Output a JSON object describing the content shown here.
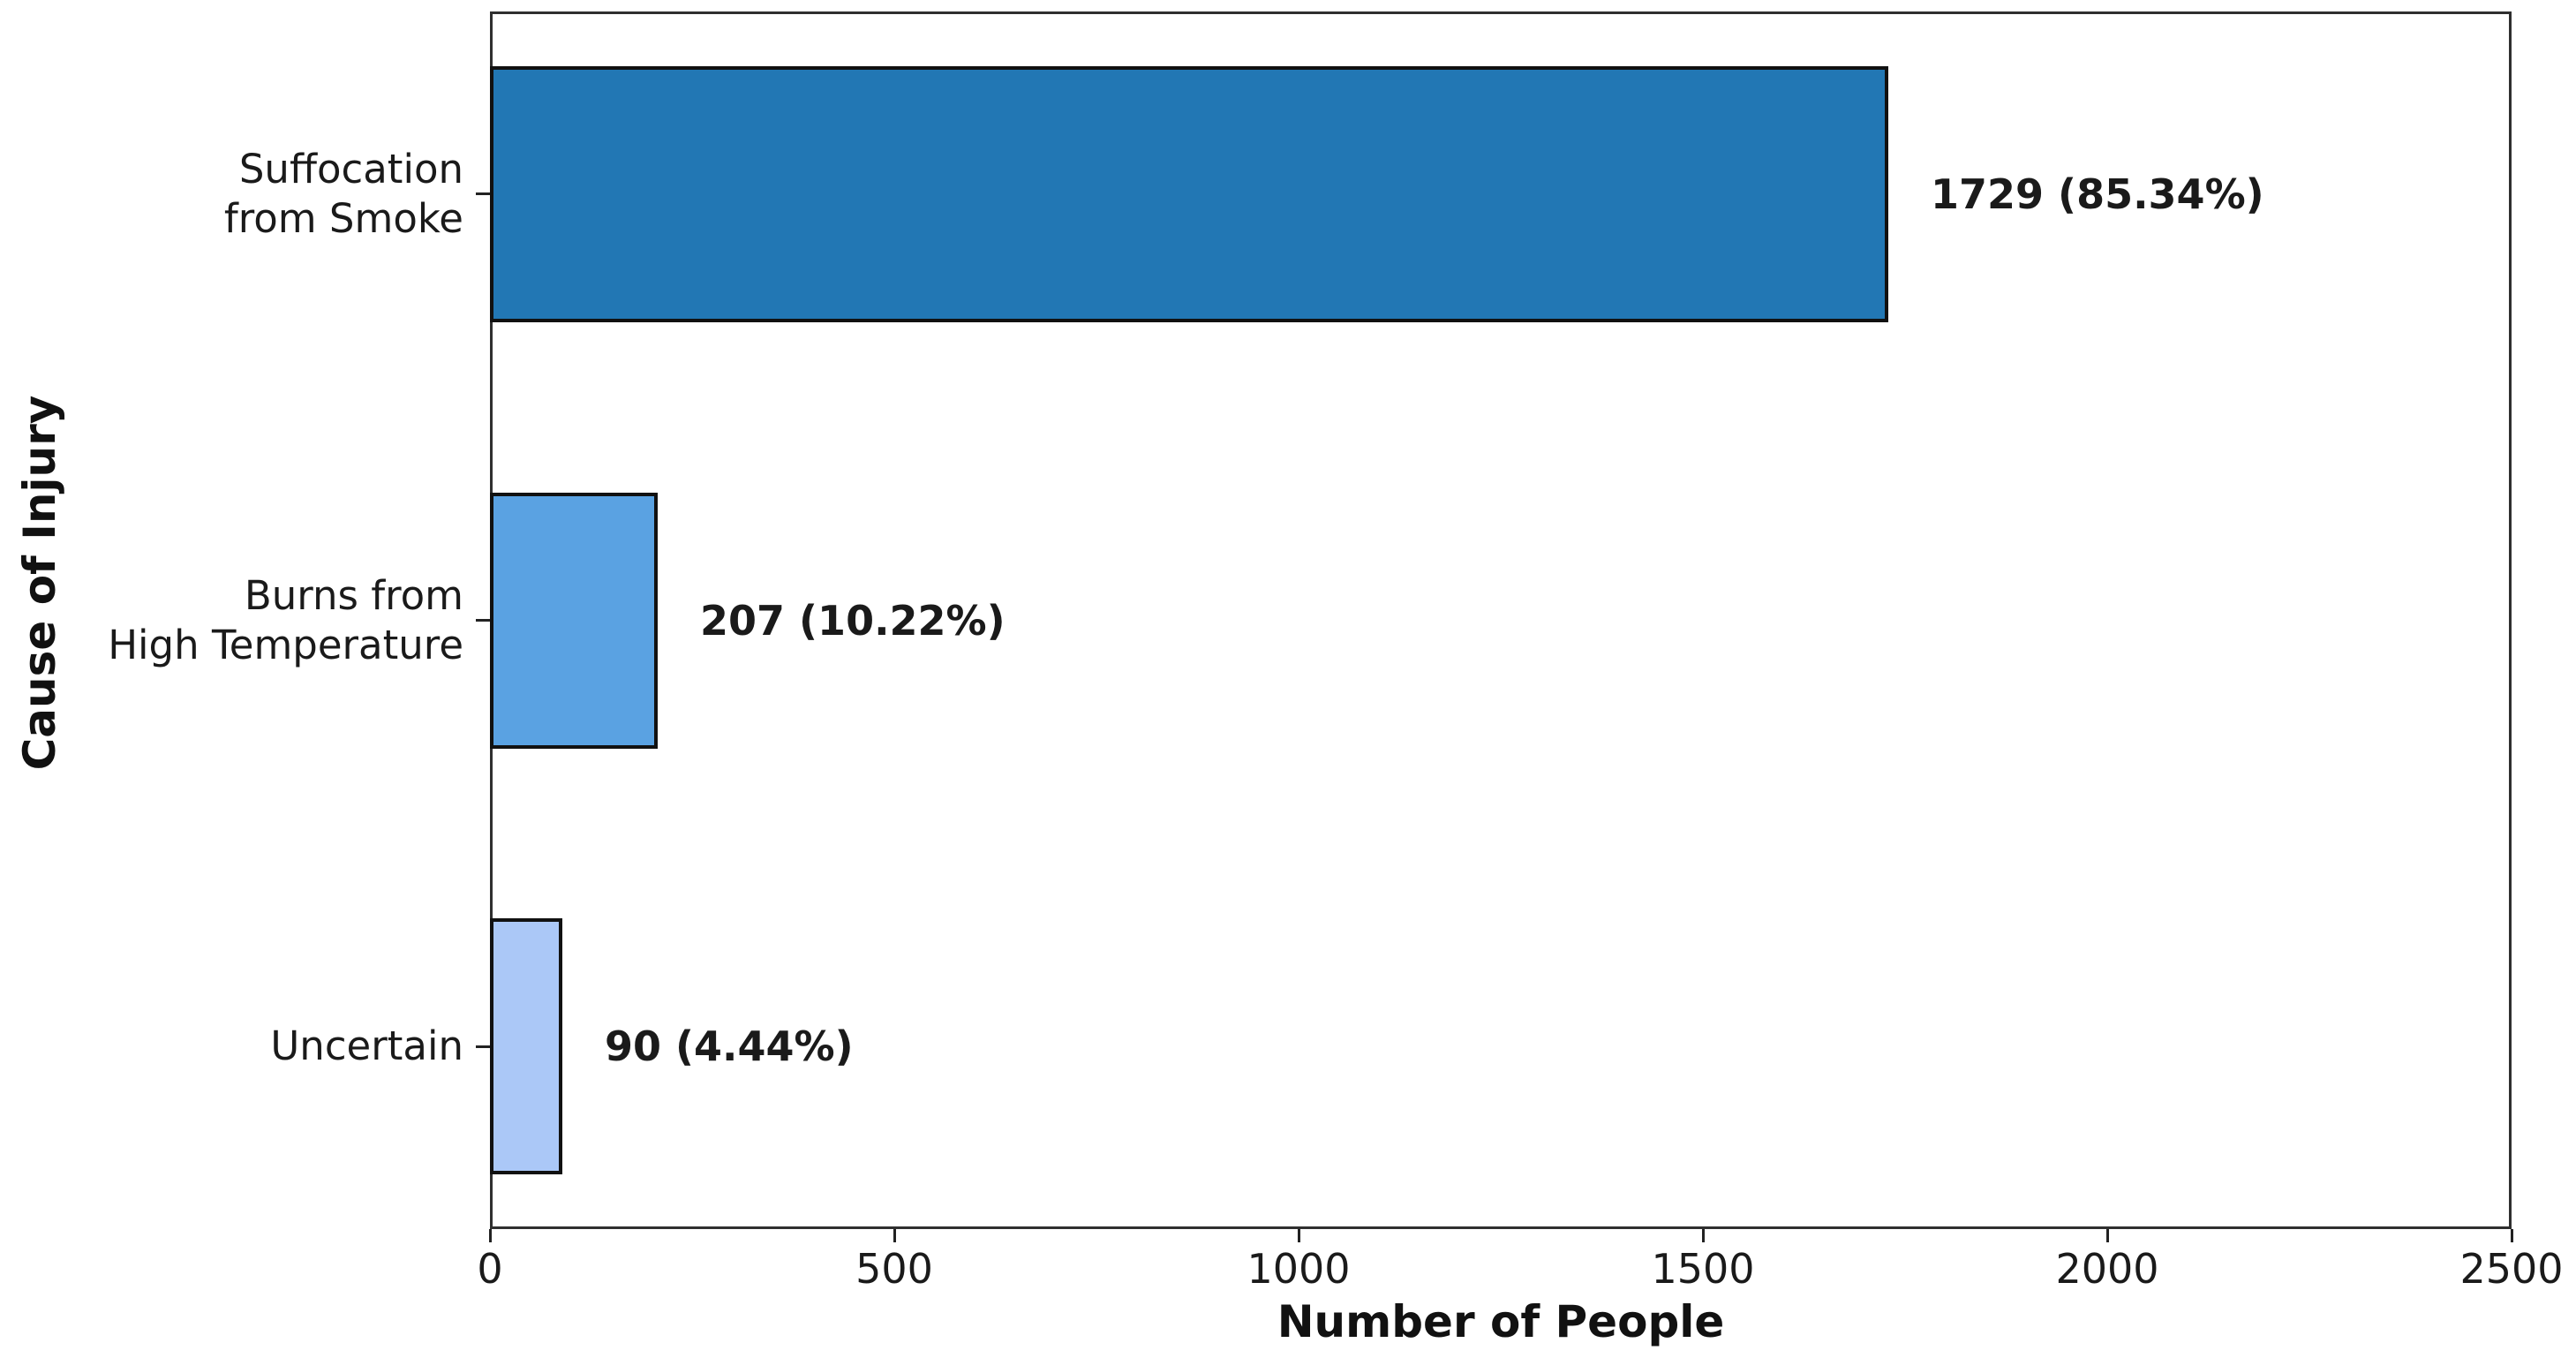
{
  "chart_data": {
    "type": "bar",
    "orientation": "horizontal",
    "xlabel": "Number of People",
    "ylabel": "Cause of Injury",
    "xlim": [
      0,
      2500
    ],
    "x_ticks": [
      0,
      500,
      1000,
      1500,
      2000,
      2500
    ],
    "categories": [
      "Suffocation from Smoke",
      "Burns from High Temperature",
      "Uncertain"
    ],
    "category_lines": [
      [
        "Suffocation",
        "from Smoke"
      ],
      [
        "Burns from",
        "High Temperature"
      ],
      [
        "Uncertain"
      ]
    ],
    "values": [
      1729,
      207,
      90
    ],
    "value_labels": [
      "1729 (85.34%)",
      "207 (10.22%)",
      "90 (4.44%)"
    ],
    "bar_colors": [
      "#2277b4",
      "#5aa2e2",
      "#abc8f7"
    ],
    "bar_edge_color": "#111111",
    "grid": false,
    "legend": null
  }
}
